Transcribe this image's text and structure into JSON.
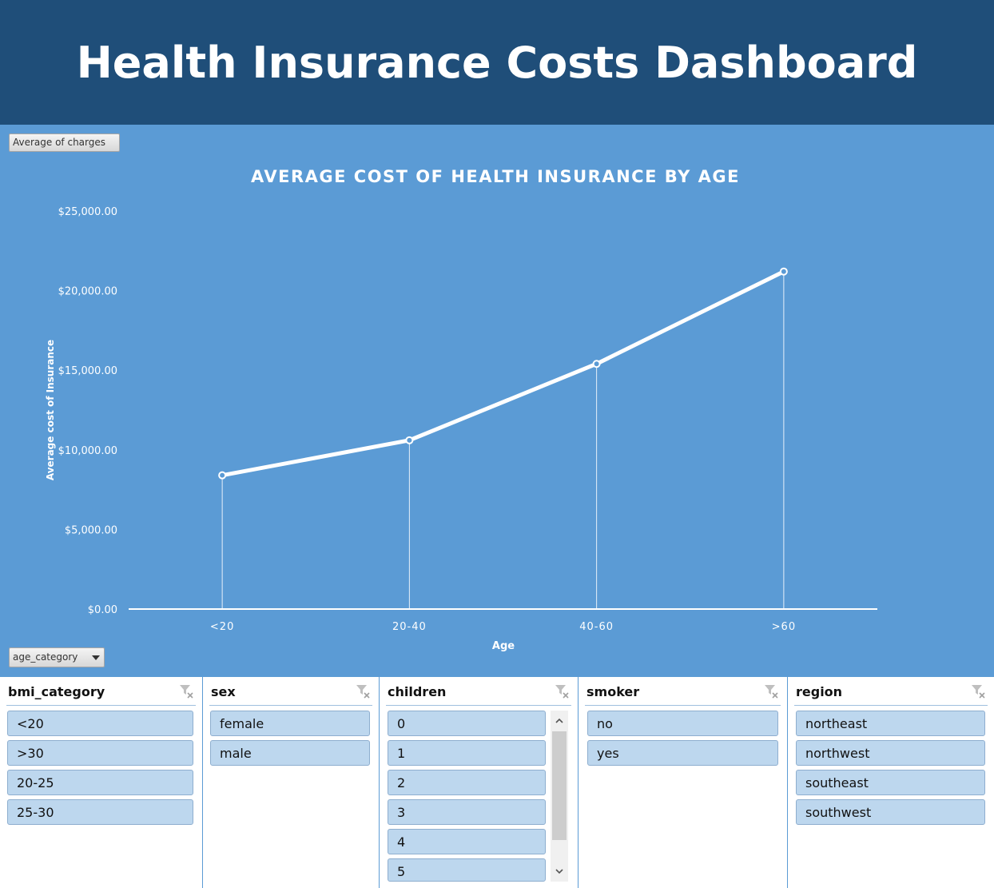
{
  "header": {
    "title": "Health Insurance Costs Dashboard"
  },
  "pivot": {
    "value_field": "Average of charges",
    "axis_field": "age_category"
  },
  "chart_data": {
    "type": "line",
    "title": "AVERAGE COST OF HEALTH INSURANCE BY AGE",
    "xlabel": "Age",
    "ylabel": "Average cost of Insurance",
    "categories": [
      "<20",
      "20-40",
      "40-60",
      ">60"
    ],
    "series": [
      {
        "values": [
          8400,
          10600,
          15400,
          21200
        ]
      }
    ],
    "ylim": [
      0,
      25000
    ],
    "yticks": [
      {
        "value": 0,
        "label": "$0.00"
      },
      {
        "value": 5000,
        "label": "$5,000.00"
      },
      {
        "value": 10000,
        "label": "$10,000.00"
      },
      {
        "value": 15000,
        "label": "$15,000.00"
      },
      {
        "value": 20000,
        "label": "$20,000.00"
      },
      {
        "value": 25000,
        "label": "$25,000.00"
      }
    ],
    "grid": false,
    "colors": {
      "background": "#5b9bd5",
      "line": "#ffffff"
    }
  },
  "slicers": [
    {
      "title": "bmi_category",
      "items": [
        "<20",
        ">30",
        "20-25",
        "25-30"
      ]
    },
    {
      "title": "sex",
      "items": [
        "female",
        "male"
      ]
    },
    {
      "title": "children",
      "items": [
        "0",
        "1",
        "2",
        "3",
        "4",
        "5"
      ]
    },
    {
      "title": "smoker",
      "items": [
        "no",
        "yes"
      ]
    },
    {
      "title": "region",
      "items": [
        "northeast",
        "northwest",
        "southeast",
        "southwest"
      ]
    }
  ],
  "colors": {
    "header": "#1f4e79",
    "chart_bg": "#5b9bd5",
    "slicer_item": "#bdd7ee"
  },
  "icons": {
    "slicer_clear": "clear-filter-icon",
    "scroll_up": "chevron-up-icon",
    "scroll_down": "chevron-down-icon"
  }
}
